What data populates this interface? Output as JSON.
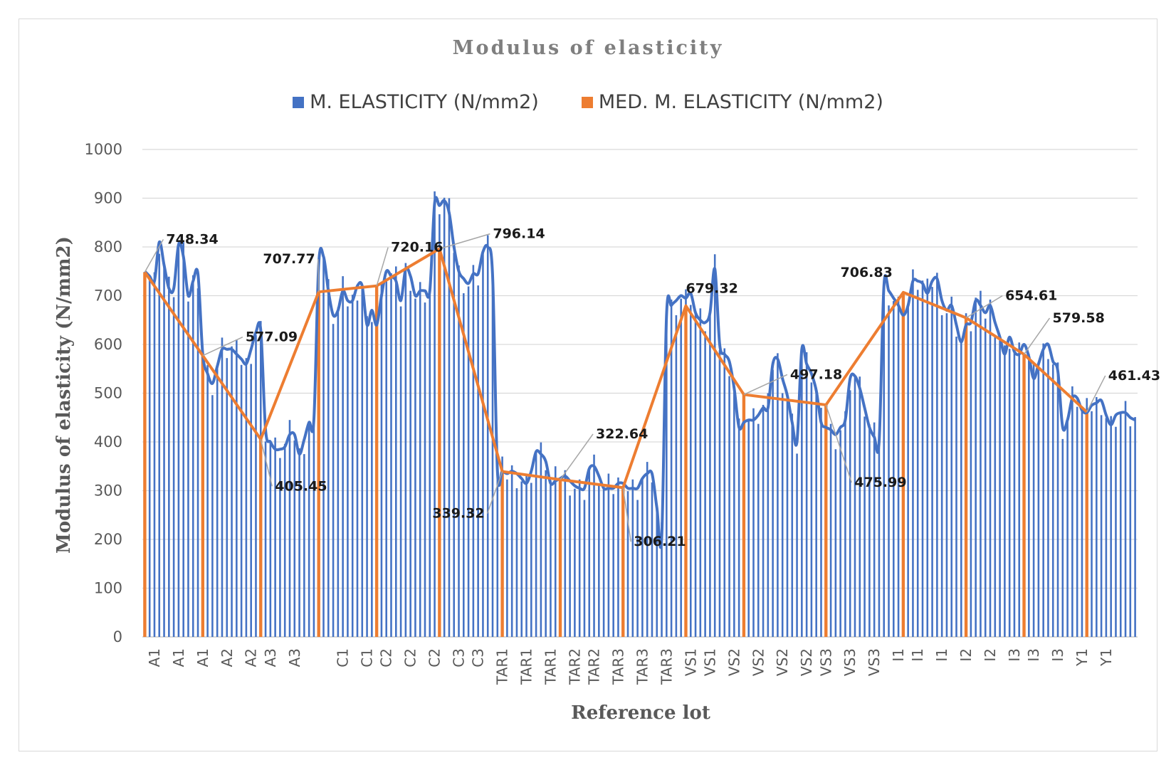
{
  "chart_data": {
    "type": "bar",
    "title": "Modulus of elasticity",
    "xlabel": "Reference lot",
    "ylabel": "Modulus of elasticity (N/mm2)",
    "ylim": [
      0,
      1000
    ],
    "yticks": [
      0,
      100,
      200,
      300,
      400,
      500,
      600,
      700,
      800,
      900,
      1000
    ],
    "grid": true,
    "legend_position": "top-center",
    "colors": {
      "bars": "#4472c4",
      "median": "#ed7d31",
      "leader": "#a6a6a6",
      "grid": "#d9d9d9"
    },
    "tick_labels": [
      "A1",
      "A1",
      "A1",
      "A2",
      "A2",
      "A3",
      "A3",
      "C1",
      "C1",
      "C2",
      "C2",
      "C2",
      "C3",
      "C3",
      "TAR1",
      "TAR1",
      "TAR1",
      "TAR2",
      "TAR2",
      "TAR3",
      "TAR3",
      "TAR3",
      "VS1",
      "VS1",
      "VS2",
      "VS2",
      "VS2",
      "VS2",
      "VS3",
      "VS3",
      "VS3",
      "I1",
      "I1",
      "I1",
      "I2",
      "I2",
      "I3",
      "I3",
      "I3",
      "Y1",
      "Y1"
    ],
    "groups": [
      {
        "name": "A1",
        "start": 0,
        "n": 12
      },
      {
        "name": "A2",
        "start": 12,
        "n": 12
      },
      {
        "name": "A3",
        "start": 24,
        "n": 12
      },
      {
        "name": "C1",
        "start": 36,
        "n": 12
      },
      {
        "name": "C2",
        "start": 48,
        "n": 13
      },
      {
        "name": "C3",
        "start": 61,
        "n": 13
      },
      {
        "name": "TAR1",
        "start": 74,
        "n": 12
      },
      {
        "name": "TAR2",
        "start": 86,
        "n": 13
      },
      {
        "name": "TAR3",
        "start": 99,
        "n": 13
      },
      {
        "name": "VS1",
        "start": 112,
        "n": 12
      },
      {
        "name": "VS2",
        "start": 124,
        "n": 17
      },
      {
        "name": "VS3",
        "start": 141,
        "n": 16
      },
      {
        "name": "I1",
        "start": 157,
        "n": 13
      },
      {
        "name": "I2",
        "start": 170,
        "n": 12
      },
      {
        "name": "I3",
        "start": 182,
        "n": 13
      },
      {
        "name": "Y1",
        "start": 195,
        "n": 11
      }
    ],
    "total_points": 206,
    "series": [
      {
        "name": "M. ELASTICITY (N/mm2)",
        "type": "bar+line",
        "anchors": [
          [
            0,
            750
          ],
          [
            2,
            730
          ],
          [
            3,
            810
          ],
          [
            5,
            715
          ],
          [
            6,
            715
          ],
          [
            7,
            805
          ],
          [
            8,
            780
          ],
          [
            9,
            700
          ],
          [
            10,
            730
          ],
          [
            11,
            745
          ],
          [
            12,
            580
          ],
          [
            13,
            540
          ],
          [
            14,
            520
          ],
          [
            16,
            590
          ],
          [
            18,
            590
          ],
          [
            20,
            570
          ],
          [
            21,
            560
          ],
          [
            22,
            590
          ],
          [
            23,
            625
          ],
          [
            24,
            630
          ],
          [
            25,
            425
          ],
          [
            26,
            400
          ],
          [
            27,
            385
          ],
          [
            28,
            385
          ],
          [
            29,
            390
          ],
          [
            30,
            415
          ],
          [
            31,
            415
          ],
          [
            32,
            375
          ],
          [
            33,
            405
          ],
          [
            34,
            440
          ],
          [
            35,
            445
          ],
          [
            36,
            765
          ],
          [
            37,
            780
          ],
          [
            38,
            710
          ],
          [
            39,
            660
          ],
          [
            40,
            670
          ],
          [
            41,
            710
          ],
          [
            42,
            690
          ],
          [
            43,
            690
          ],
          [
            44,
            720
          ],
          [
            45,
            720
          ],
          [
            46,
            640
          ],
          [
            47,
            670
          ],
          [
            48,
            640
          ],
          [
            49,
            700
          ],
          [
            50,
            750
          ],
          [
            51,
            740
          ],
          [
            52,
            730
          ],
          [
            53,
            690
          ],
          [
            54,
            755
          ],
          [
            55,
            740
          ],
          [
            56,
            700
          ],
          [
            57,
            710
          ],
          [
            58,
            710
          ],
          [
            59,
            710
          ],
          [
            60,
            890
          ],
          [
            61,
            885
          ],
          [
            62,
            895
          ],
          [
            63,
            870
          ],
          [
            64,
            800
          ],
          [
            65,
            750
          ],
          [
            66,
            735
          ],
          [
            67,
            725
          ],
          [
            68,
            745
          ],
          [
            69,
            745
          ],
          [
            70,
            790
          ],
          [
            71,
            800
          ],
          [
            72,
            740
          ],
          [
            73,
            340
          ],
          [
            74,
            340
          ],
          [
            75,
            335
          ],
          [
            76,
            340
          ],
          [
            77,
            335
          ],
          [
            78,
            325
          ],
          [
            79,
            315
          ],
          [
            80,
            340
          ],
          [
            81,
            380
          ],
          [
            82,
            375
          ],
          [
            83,
            360
          ],
          [
            84,
            315
          ],
          [
            85,
            320
          ],
          [
            86,
            325
          ],
          [
            87,
            330
          ],
          [
            88,
            320
          ],
          [
            89,
            310
          ],
          [
            90,
            305
          ],
          [
            91,
            305
          ],
          [
            92,
            345
          ],
          [
            93,
            350
          ],
          [
            94,
            330
          ],
          [
            95,
            305
          ],
          [
            96,
            305
          ],
          [
            97,
            305
          ],
          [
            98,
            315
          ],
          [
            99,
            315
          ],
          [
            100,
            305
          ],
          [
            101,
            305
          ],
          [
            102,
            305
          ],
          [
            103,
            325
          ],
          [
            104,
            335
          ],
          [
            105,
            335
          ],
          [
            106,
            265
          ],
          [
            107,
            205
          ],
          [
            108,
            660
          ],
          [
            109,
            680
          ],
          [
            110,
            690
          ],
          [
            111,
            700
          ],
          [
            112,
            695
          ],
          [
            113,
            705
          ],
          [
            114,
            665
          ],
          [
            115,
            650
          ],
          [
            116,
            645
          ],
          [
            117,
            665
          ],
          [
            118,
            755
          ],
          [
            119,
            600
          ],
          [
            120,
            580
          ],
          [
            121,
            565
          ],
          [
            122,
            510
          ],
          [
            123,
            430
          ],
          [
            124,
            440
          ],
          [
            125,
            445
          ],
          [
            126,
            445
          ],
          [
            127,
            455
          ],
          [
            128,
            470
          ],
          [
            129,
            470
          ],
          [
            130,
            560
          ],
          [
            131,
            570
          ],
          [
            132,
            530
          ],
          [
            133,
            495
          ],
          [
            134,
            440
          ],
          [
            135,
            400
          ],
          [
            136,
            590
          ],
          [
            137,
            560
          ],
          [
            138,
            540
          ],
          [
            139,
            505
          ],
          [
            140,
            440
          ],
          [
            141,
            430
          ],
          [
            142,
            425
          ],
          [
            143,
            415
          ],
          [
            144,
            430
          ],
          [
            145,
            445
          ],
          [
            146,
            530
          ],
          [
            147,
            535
          ],
          [
            148,
            510
          ],
          [
            149,
            470
          ],
          [
            150,
            430
          ],
          [
            151,
            410
          ],
          [
            152,
            400
          ],
          [
            153,
            720
          ],
          [
            154,
            710
          ],
          [
            155,
            695
          ],
          [
            156,
            680
          ],
          [
            157,
            660
          ],
          [
            158,
            680
          ],
          [
            159,
            730
          ],
          [
            160,
            730
          ],
          [
            161,
            725
          ],
          [
            162,
            705
          ],
          [
            163,
            730
          ],
          [
            164,
            735
          ],
          [
            165,
            690
          ],
          [
            166,
            670
          ],
          [
            167,
            680
          ],
          [
            168,
            640
          ],
          [
            169,
            605
          ],
          [
            170,
            640
          ],
          [
            171,
            645
          ],
          [
            172,
            690
          ],
          [
            173,
            680
          ],
          [
            174,
            665
          ],
          [
            175,
            680
          ],
          [
            176,
            645
          ],
          [
            177,
            615
          ],
          [
            178,
            580
          ],
          [
            179,
            615
          ],
          [
            180,
            585
          ],
          [
            181,
            580
          ],
          [
            182,
            600
          ],
          [
            183,
            575
          ],
          [
            184,
            530
          ],
          [
            185,
            560
          ],
          [
            186,
            590
          ],
          [
            187,
            600
          ],
          [
            188,
            565
          ],
          [
            189,
            545
          ],
          [
            190,
            430
          ],
          [
            191,
            445
          ],
          [
            192,
            490
          ],
          [
            193,
            490
          ],
          [
            194,
            465
          ],
          [
            195,
            460
          ],
          [
            196,
            475
          ],
          [
            197,
            480
          ],
          [
            198,
            485
          ],
          [
            199,
            455
          ],
          [
            200,
            435
          ],
          [
            201,
            455
          ],
          [
            202,
            460
          ],
          [
            203,
            460
          ],
          [
            204,
            450
          ],
          [
            205,
            445
          ]
        ]
      },
      {
        "name": "MED. M. ELASTICITY (N/mm2)",
        "type": "line",
        "points": [
          {
            "x": 0,
            "label": "748.34",
            "value": 748.34
          },
          {
            "x": 12,
            "label": "577.09",
            "value": 577.09
          },
          {
            "x": 24,
            "label": "405.45",
            "value": 405.45
          },
          {
            "x": 36,
            "label": "707.77",
            "value": 707.77
          },
          {
            "x": 48,
            "label": "720.16",
            "value": 720.16
          },
          {
            "x": 61,
            "label": "796.14",
            "value": 796.14
          },
          {
            "x": 74,
            "label": "339.32",
            "value": 339.32
          },
          {
            "x": 86,
            "label": "322.64",
            "value": 322.64
          },
          {
            "x": 99,
            "label": "306.21",
            "value": 306.21
          },
          {
            "x": 112,
            "label": "679.32",
            "value": 679.32
          },
          {
            "x": 124,
            "label": "497.18",
            "value": 497.18
          },
          {
            "x": 141,
            "label": "475.99",
            "value": 475.99
          },
          {
            "x": 157,
            "label": "706.83",
            "value": 706.83
          },
          {
            "x": 170,
            "label": "654.61",
            "value": 654.61
          },
          {
            "x": 182,
            "label": "579.58",
            "value": 579.58
          },
          {
            "x": 195,
            "label": "461.43",
            "value": 461.43
          }
        ]
      }
    ]
  }
}
